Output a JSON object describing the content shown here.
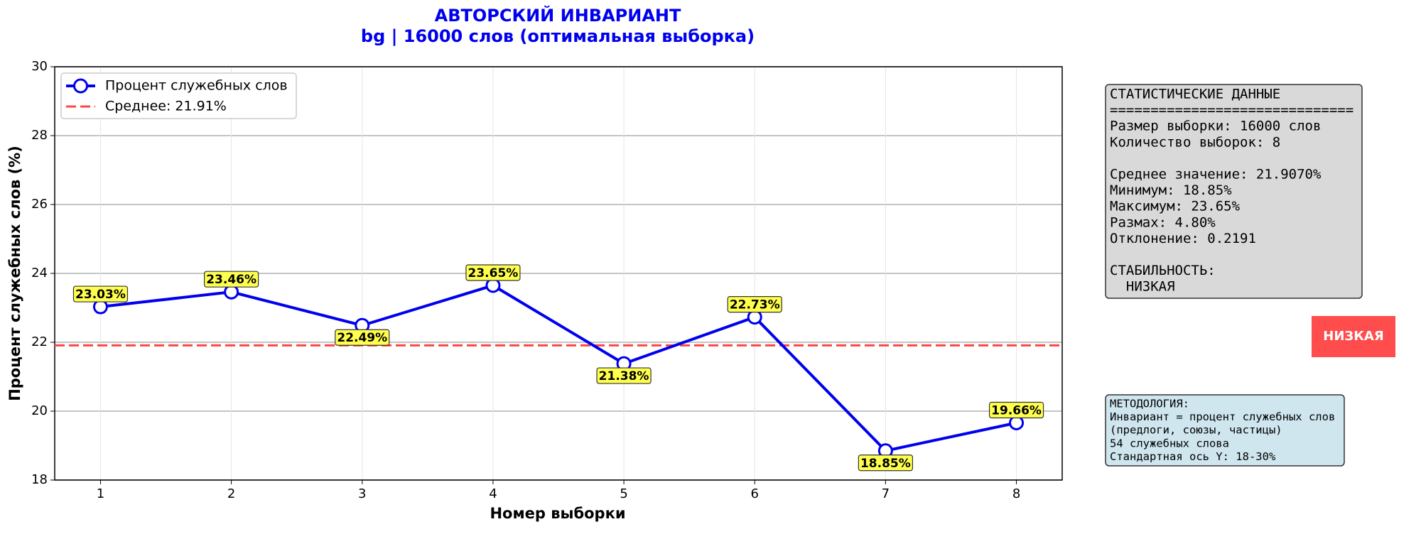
{
  "chart_data": {
    "type": "line",
    "title": "АВТОРСКИЙ ИНВАРИАНТ",
    "subtitle": "bg | 16000 слов (оптимальная выборка)",
    "x_label": "Номер выборки",
    "y_label": "Процент служебных слов (%)",
    "x": [
      1,
      2,
      3,
      4,
      5,
      6,
      7,
      8
    ],
    "xlim": [
      0.65,
      8.35
    ],
    "xticks": [
      1,
      2,
      3,
      4,
      5,
      6,
      7,
      8
    ],
    "ylim": [
      18,
      30
    ],
    "yticks": [
      18,
      20,
      22,
      24,
      26,
      28,
      30
    ],
    "grid": true,
    "legend": "upper left",
    "series": [
      {
        "name": "Процент служебных слов",
        "color": "#0000ee",
        "values": [
          23.03,
          23.46,
          22.49,
          23.65,
          21.38,
          22.73,
          18.85,
          19.66
        ],
        "value_labels": [
          "23.03%",
          "23.46%",
          "22.49%",
          "23.65%",
          "21.38%",
          "22.73%",
          "18.85%",
          "19.66%"
        ]
      }
    ],
    "mean": {
      "name": "Среднее: 21.91%",
      "value": 21.91,
      "color": "#ff4444"
    }
  },
  "panels": {
    "stats": {
      "groups": [
        [
          "СТАТИСТИЧЕСКИЕ ДАННЫЕ",
          "==============================",
          "Размер выборки: 16000 слов",
          "Количество выборок: 8"
        ],
        [
          "Среднее значение: 21.9070%",
          "Минимум: 18.85%",
          "Максимум: 23.65%",
          "Размах: 4.80%",
          "Отклонение: 0.2191"
        ],
        [
          "СТАБИЛЬНОСТЬ:",
          "  НИЗКАЯ"
        ]
      ]
    },
    "badge": "НИЗКАЯ",
    "methodology": [
      "МЕТОДОЛОГИЯ:",
      "Инвариант = процент служебных слов",
      "(предлоги, союзы, частицы)",
      "54 служебных слова",
      "Стандартная ось Y: 18-30%"
    ]
  }
}
